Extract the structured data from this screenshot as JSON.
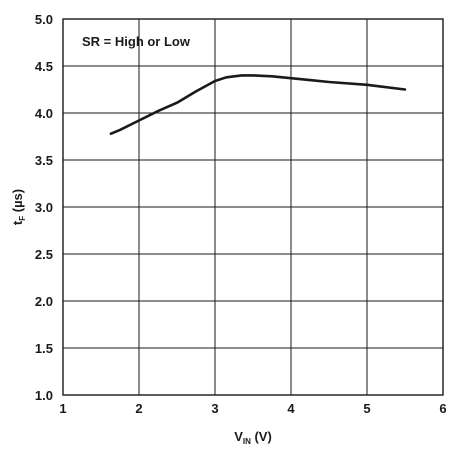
{
  "chart_data": {
    "type": "line",
    "annotation": "SR = High or Low",
    "xlabel": {
      "main": "V",
      "sub": "IN",
      "unit": " (V)"
    },
    "ylabel": {
      "main": "t",
      "sub": "F",
      "unit": " (µs)"
    },
    "xlim": [
      1,
      6
    ],
    "ylim": [
      1.0,
      5.0
    ],
    "x_ticks": [
      1,
      2,
      3,
      4,
      5,
      6
    ],
    "x_tick_labels": [
      "1",
      "2",
      "3",
      "4",
      "5",
      "6"
    ],
    "y_ticks": [
      1.0,
      1.5,
      2.0,
      2.5,
      3.0,
      3.5,
      4.0,
      4.5,
      5.0
    ],
    "y_tick_labels": [
      "1.0",
      "1.5",
      "2.0",
      "2.5",
      "3.0",
      "3.5",
      "4.0",
      "4.5",
      "5.0"
    ],
    "grid": true,
    "series": [
      {
        "x": [
          1.63,
          1.75,
          2.0,
          2.25,
          2.5,
          2.75,
          3.0,
          3.15,
          3.35,
          3.5,
          3.75,
          4.0,
          4.25,
          4.5,
          5.0,
          5.5
        ],
        "y": [
          3.78,
          3.82,
          3.92,
          4.02,
          4.11,
          4.23,
          4.34,
          4.38,
          4.4,
          4.4,
          4.39,
          4.37,
          4.35,
          4.33,
          4.3,
          4.25
        ]
      }
    ]
  }
}
